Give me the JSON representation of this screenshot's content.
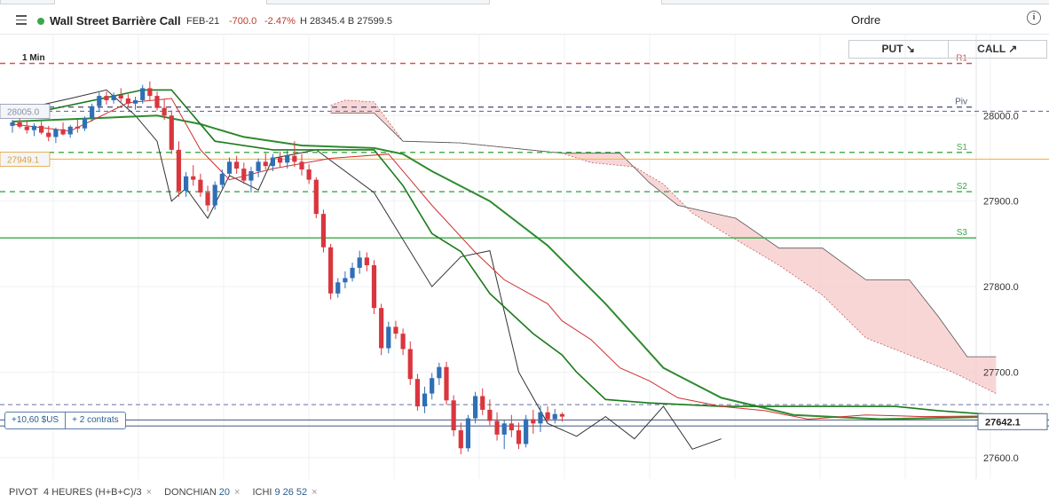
{
  "header": {
    "instrument": "Wall Street Barrière Call",
    "expiry": "FEB-21",
    "change": "-700.0",
    "change_pct": "-2.47%",
    "high_low": "H 28345.4  B 27599.5",
    "order_label": "Ordre",
    "status_color": "#3aa84a",
    "negative_color": "#c0392b"
  },
  "buttons": {
    "put": "PUT ↘",
    "call": "CALL ↗"
  },
  "timeframe": "1 Min",
  "position": {
    "pnl": "+10,60 $US",
    "contracts": "+ 2 contrats"
  },
  "legend": [
    {
      "name": "PIVOT",
      "params": "4 HEURES  (H+B+C)/3",
      "nums": []
    },
    {
      "name": "DONCHIAN",
      "params": "",
      "nums": [
        "20"
      ]
    },
    {
      "name": "ICHI",
      "params": "",
      "nums": [
        "9",
        "26",
        "52"
      ]
    }
  ],
  "chart_data": {
    "type": "candlestick",
    "interval": "1 Min",
    "y_axis": {
      "min": 27575,
      "max": 28075,
      "ticks": [
        28000.0,
        27900.0,
        27800.0,
        27700.0,
        27600.0
      ],
      "tick_labels": [
        "28000.0",
        "27900.0",
        "27800.0",
        "27700.0",
        "27600.0"
      ]
    },
    "current_price": 27642.1,
    "current_price_label": "27642.1",
    "left_markers": [
      {
        "label": "28005.0",
        "value": 28005.0,
        "color": "#8a8fa8"
      },
      {
        "label": "27949.1",
        "value": 27949.1,
        "color": "#e0a030"
      }
    ],
    "pivot_levels": [
      {
        "label": "R1",
        "value": 28061,
        "color": "#d9534f",
        "dash": true
      },
      {
        "label": "Piv",
        "value": 28010,
        "color": "#555a80",
        "dash": true
      },
      {
        "label": "S1",
        "value": 27957,
        "color": "#4caf50",
        "dash": true
      },
      {
        "label": "S2",
        "value": 27911,
        "color": "#3aa84a",
        "dash": true
      },
      {
        "label": "S3",
        "value": 27857,
        "color": "#3aa84a",
        "dash": false
      }
    ],
    "horizontal_lines": [
      {
        "value": 28005.0,
        "color": "#6a6fa0",
        "dash": true
      },
      {
        "value": 27949.1,
        "color": "#f0b030",
        "dash": false
      },
      {
        "value": 27662,
        "color": "#6a6fa0",
        "dash": true
      },
      {
        "value": 27644,
        "color": "#5a6a8a",
        "dash": false
      },
      {
        "value": 27637,
        "color": "#5a6a8a",
        "dash": false
      }
    ],
    "candles": [
      [
        27988,
        27995,
        27980,
        27992
      ],
      [
        27992,
        27997,
        27985,
        27987
      ],
      [
        27987,
        27994,
        27979,
        27983
      ],
      [
        27983,
        27991,
        27976,
        27988
      ],
      [
        27988,
        27993,
        27978,
        27980
      ],
      [
        27980,
        27988,
        27970,
        27975
      ],
      [
        27975,
        27986,
        27968,
        27984
      ],
      [
        27984,
        27992,
        27977,
        27978
      ],
      [
        27978,
        27989,
        27974,
        27987
      ],
      [
        27987,
        27996,
        27980,
        27985
      ],
      [
        27985,
        27999,
        27982,
        27997
      ],
      [
        27997,
        28014,
        27993,
        28011
      ],
      [
        28011,
        28027,
        28005,
        28023
      ],
      [
        28023,
        28028,
        28013,
        28018
      ],
      [
        28018,
        28027,
        28014,
        28024
      ],
      [
        28024,
        28032,
        28016,
        28020
      ],
      [
        28020,
        28025,
        28010,
        28014
      ],
      [
        28014,
        28022,
        28007,
        28018
      ],
      [
        28018,
        28036,
        28014,
        28032
      ],
      [
        28032,
        28040,
        28018,
        28023
      ],
      [
        28023,
        28028,
        28006,
        28009
      ],
      [
        28009,
        28019,
        27995,
        28000
      ],
      [
        28000,
        28006,
        27955,
        27960
      ],
      [
        27960,
        27970,
        27905,
        27912
      ],
      [
        27912,
        27934,
        27905,
        27929
      ],
      [
        27929,
        27942,
        27918,
        27925
      ],
      [
        27925,
        27932,
        27905,
        27910
      ],
      [
        27910,
        27918,
        27888,
        27895
      ],
      [
        27895,
        27923,
        27890,
        27919
      ],
      [
        27919,
        27937,
        27915,
        27932
      ],
      [
        27932,
        27951,
        27928,
        27946
      ],
      [
        27946,
        27953,
        27932,
        27938
      ],
      [
        27938,
        27945,
        27920,
        27924
      ],
      [
        27924,
        27940,
        27910,
        27935
      ],
      [
        27935,
        27950,
        27928,
        27946
      ],
      [
        27946,
        27956,
        27937,
        27941
      ],
      [
        27941,
        27955,
        27935,
        27951
      ],
      [
        27951,
        27958,
        27940,
        27945
      ],
      [
        27945,
        27959,
        27938,
        27953
      ],
      [
        27953,
        27970,
        27940,
        27946
      ],
      [
        27946,
        27955,
        27930,
        27937
      ],
      [
        27937,
        27943,
        27920,
        27925
      ],
      [
        27925,
        27928,
        27880,
        27885
      ],
      [
        27885,
        27890,
        27840,
        27846
      ],
      [
        27846,
        27850,
        27785,
        27792
      ],
      [
        27792,
        27810,
        27787,
        27805
      ],
      [
        27805,
        27818,
        27798,
        27810
      ],
      [
        27810,
        27828,
        27806,
        27822
      ],
      [
        27822,
        27842,
        27815,
        27834
      ],
      [
        27834,
        27840,
        27818,
        27825
      ],
      [
        27825,
        27831,
        27768,
        27775
      ],
      [
        27775,
        27780,
        27720,
        27728
      ],
      [
        27728,
        27759,
        27722,
        27753
      ],
      [
        27753,
        27760,
        27739,
        27745
      ],
      [
        27745,
        27751,
        27720,
        27727
      ],
      [
        27727,
        27736,
        27685,
        27692
      ],
      [
        27692,
        27698,
        27655,
        27660
      ],
      [
        27660,
        27683,
        27652,
        27675
      ],
      [
        27675,
        27699,
        27668,
        27693
      ],
      [
        27693,
        27711,
        27685,
        27706
      ],
      [
        27706,
        27712,
        27662,
        27667
      ],
      [
        27667,
        27673,
        27625,
        27632
      ],
      [
        27632,
        27641,
        27604,
        27611
      ],
      [
        27611,
        27650,
        27607,
        27646
      ],
      [
        27646,
        27677,
        27640,
        27672
      ],
      [
        27672,
        27681,
        27650,
        27656
      ],
      [
        27656,
        27668,
        27638,
        27643
      ],
      [
        27643,
        27653,
        27620,
        27627
      ],
      [
        27627,
        27644,
        27610,
        27640
      ],
      [
        27640,
        27650,
        27624,
        27632
      ],
      [
        27632,
        27641,
        27610,
        27616
      ],
      [
        27616,
        27650,
        27612,
        27645
      ],
      [
        27645,
        27656,
        27628,
        27640
      ],
      [
        27640,
        27661,
        27630,
        27653
      ],
      [
        27653,
        27660,
        27642,
        27645
      ],
      [
        27645,
        27657,
        27640,
        27651
      ],
      [
        27651,
        27653,
        27642,
        27648
      ]
    ],
    "donchian_upper": [
      [
        0,
        27998
      ],
      [
        18,
        28030
      ],
      [
        22,
        28030
      ],
      [
        28,
        27970
      ],
      [
        36,
        27960
      ],
      [
        50,
        27960
      ],
      [
        54,
        27918
      ],
      [
        58,
        27862
      ],
      [
        62,
        27841
      ],
      [
        66,
        27792
      ],
      [
        72,
        27745
      ],
      [
        76,
        27720
      ],
      [
        78,
        27700
      ],
      [
        82,
        27668
      ],
      [
        88,
        27664
      ],
      [
        98,
        27660
      ],
      [
        122,
        27660
      ],
      [
        128,
        27655
      ],
      [
        136,
        27650
      ]
    ],
    "tenkan": [
      [
        0,
        27990
      ],
      [
        8,
        27982
      ],
      [
        16,
        28015
      ],
      [
        22,
        28020
      ],
      [
        24,
        27990
      ],
      [
        26,
        27960
      ],
      [
        30,
        27925
      ],
      [
        36,
        27938
      ],
      [
        44,
        27950
      ],
      [
        52,
        27955
      ],
      [
        55,
        27925
      ],
      [
        58,
        27895
      ],
      [
        64,
        27840
      ],
      [
        68,
        27808
      ],
      [
        74,
        27780
      ],
      [
        76,
        27760
      ],
      [
        80,
        27738
      ],
      [
        84,
        27705
      ],
      [
        88,
        27690
      ],
      [
        92,
        27670
      ],
      [
        98,
        27660
      ],
      [
        104,
        27655
      ],
      [
        110,
        27645
      ],
      [
        118,
        27650
      ],
      [
        126,
        27648
      ],
      [
        136,
        27649
      ]
    ],
    "kijun": [
      [
        0,
        27993
      ],
      [
        20,
        28000
      ],
      [
        26,
        27990
      ],
      [
        28,
        27985
      ],
      [
        32,
        27975
      ],
      [
        40,
        27965
      ],
      [
        50,
        27962
      ],
      [
        54,
        27955
      ],
      [
        58,
        27935
      ],
      [
        66,
        27900
      ],
      [
        74,
        27848
      ],
      [
        82,
        27780
      ],
      [
        90,
        27705
      ],
      [
        98,
        27670
      ],
      [
        108,
        27650
      ],
      [
        120,
        27645
      ],
      [
        136,
        27648
      ]
    ],
    "chikou": [
      [
        0,
        28005
      ],
      [
        8,
        28020
      ],
      [
        13,
        28030
      ],
      [
        17,
        28000
      ],
      [
        20,
        27970
      ],
      [
        22,
        27900
      ],
      [
        24,
        27915
      ],
      [
        27,
        27880
      ],
      [
        30,
        27930
      ],
      [
        34,
        27913
      ],
      [
        36,
        27950
      ],
      [
        42,
        27960
      ],
      [
        50,
        27910
      ],
      [
        54,
        27855
      ],
      [
        58,
        27800
      ],
      [
        62,
        27835
      ],
      [
        66,
        27842
      ],
      [
        70,
        27700
      ],
      [
        74,
        27640
      ],
      [
        78,
        27625
      ],
      [
        82,
        27648
      ],
      [
        86,
        27622
      ],
      [
        90,
        27660
      ],
      [
        94,
        27610
      ],
      [
        98,
        27622
      ]
    ],
    "cloud_a": [
      [
        44,
        28012
      ],
      [
        46,
        28018
      ],
      [
        50,
        28016
      ],
      [
        54,
        27970
      ],
      [
        62,
        27968
      ],
      [
        76,
        27956
      ],
      [
        80,
        27945
      ],
      [
        86,
        27940
      ],
      [
        90,
        27920
      ],
      [
        94,
        27886
      ],
      [
        98,
        27865
      ],
      [
        106,
        27825
      ],
      [
        112,
        27790
      ],
      [
        118,
        27740
      ],
      [
        124,
        27720
      ],
      [
        130,
        27700
      ],
      [
        136,
        27675
      ]
    ],
    "cloud_b": [
      [
        44,
        28003
      ],
      [
        50,
        28003
      ],
      [
        54,
        27970
      ],
      [
        62,
        27968
      ],
      [
        76,
        27956
      ],
      [
        84,
        27956
      ],
      [
        88,
        27922
      ],
      [
        92,
        27895
      ],
      [
        100,
        27880
      ],
      [
        106,
        27845
      ],
      [
        112,
        27845
      ],
      [
        118,
        27808
      ],
      [
        124,
        27808
      ],
      [
        128,
        27765
      ],
      [
        132,
        27718
      ],
      [
        136,
        27718
      ]
    ]
  }
}
